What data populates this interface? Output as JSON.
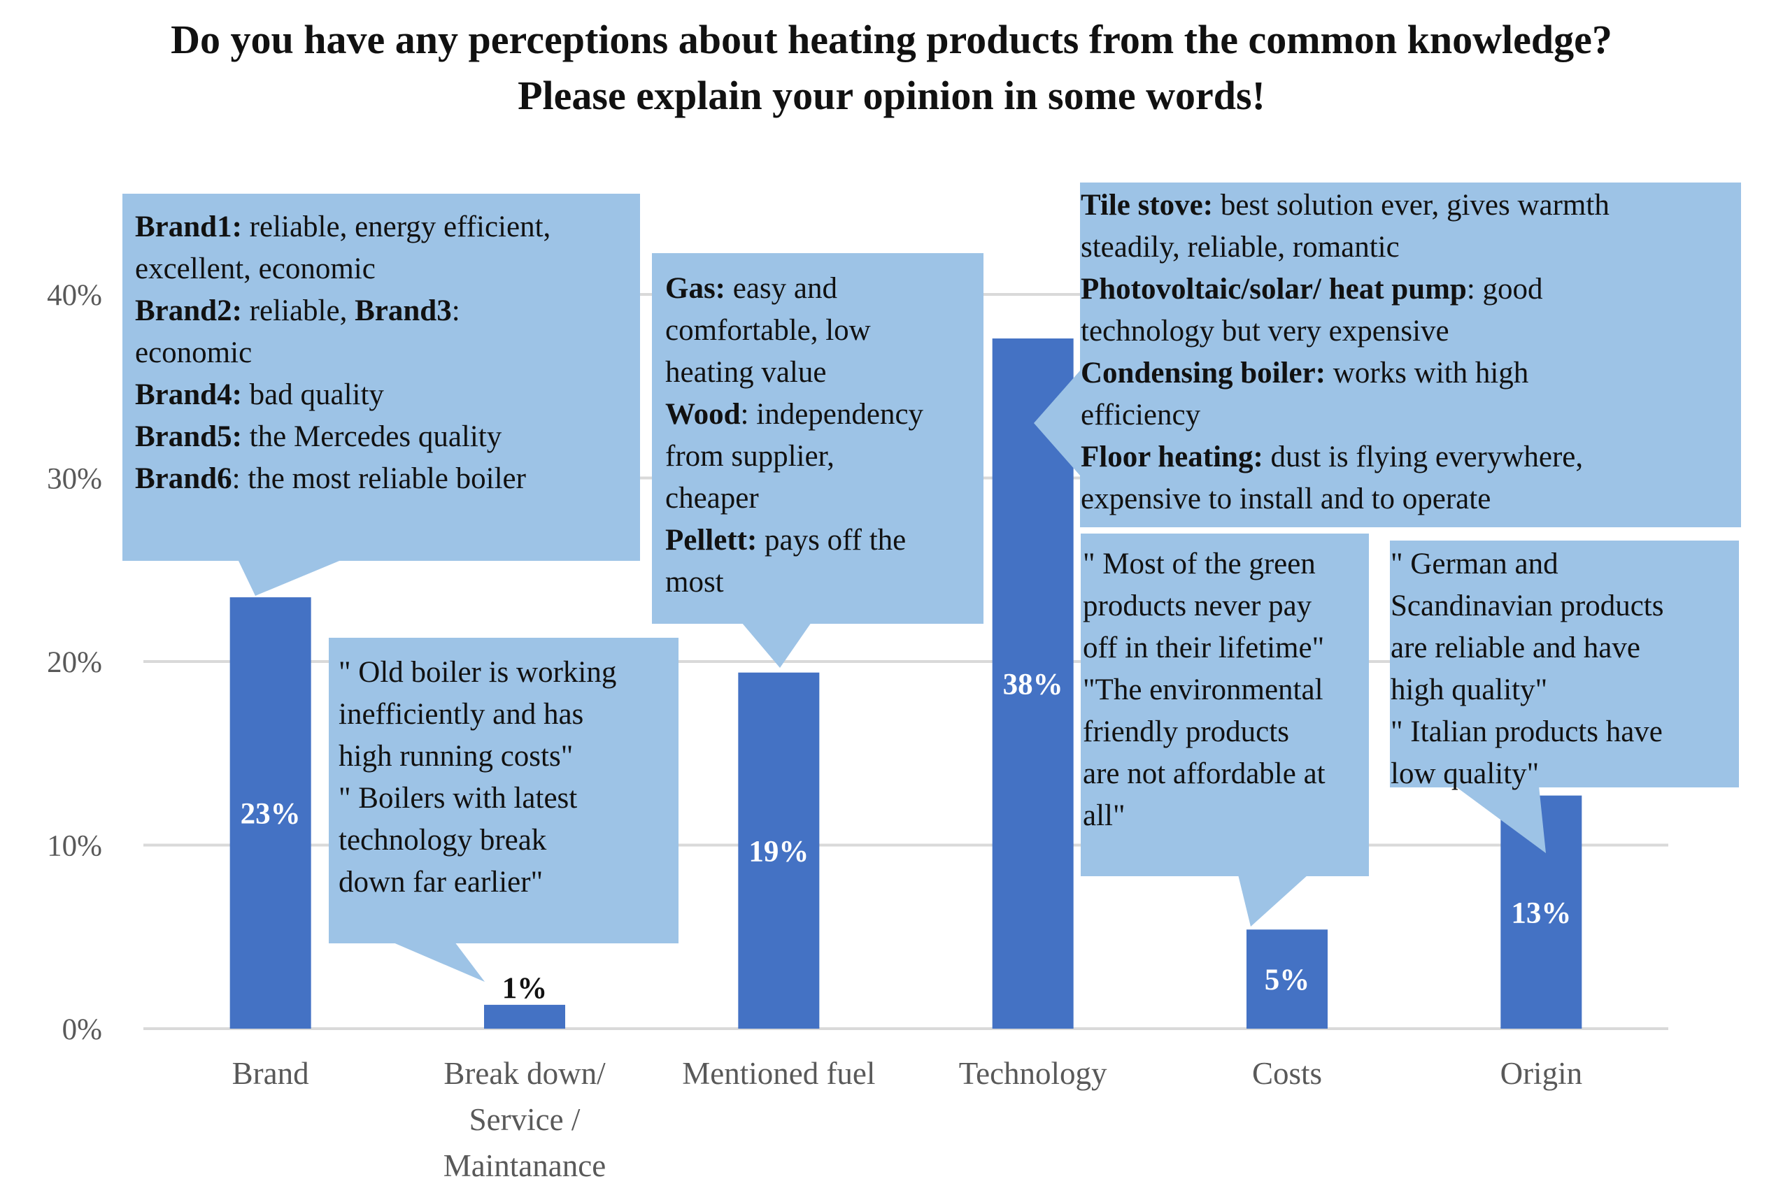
{
  "title_line1": "Do you have any perceptions about heating products from the common knowledge?",
  "title_line2": "Please explain your opinion in some words!",
  "colors": {
    "bar": "#4472C4",
    "callout": "#9DC3E6",
    "grid": "#D9D9D9",
    "axis_text": "#595959"
  },
  "chart_data": {
    "type": "bar",
    "title": "Do you have any perceptions about heating products from the common knowledge? Please explain your opinion in some words!",
    "categories": [
      "Brand",
      "Break down/ Service / Maintanance",
      "Mentioned fuel",
      "Technology",
      "Costs",
      "Origin"
    ],
    "category_lines": [
      [
        "Brand"
      ],
      [
        "Break down/",
        "Service /",
        "Maintanance"
      ],
      [
        "Mentioned fuel"
      ],
      [
        "Technology"
      ],
      [
        "Costs"
      ],
      [
        "Origin"
      ]
    ],
    "values": [
      23.5,
      1.3,
      19.4,
      37.6,
      5.4,
      12.7
    ],
    "data_labels": [
      "23%",
      "1%",
      "19%",
      "38%",
      "5%",
      "13%"
    ],
    "ylim": [
      0,
      40
    ],
    "yticks": [
      0,
      10,
      20,
      30,
      40
    ],
    "ytick_labels": [
      "0%",
      "10%",
      "20%",
      "30%",
      "40%"
    ],
    "grid": true,
    "xlabel": "",
    "ylabel": ""
  },
  "callouts": {
    "brand": [
      [
        {
          "b": "Brand1:"
        },
        {
          "t": " reliable, energy efficient,"
        }
      ],
      [
        {
          "t": "excellent, economic"
        }
      ],
      [
        {
          "b": "Brand2:"
        },
        {
          "t": " reliable, "
        },
        {
          "b": "Brand3"
        },
        {
          "t": ":"
        }
      ],
      [
        {
          "t": "economic"
        }
      ],
      [
        {
          "b": "Brand4:"
        },
        {
          "t": " bad quality"
        }
      ],
      [
        {
          "b": "Brand5:"
        },
        {
          "t": " the Mercedes quality"
        }
      ],
      [
        {
          "b": "Brand6"
        },
        {
          "t": ": the most reliable boiler"
        }
      ]
    ],
    "breakdown": [
      [
        {
          "t": "\" Old boiler is working"
        }
      ],
      [
        {
          "t": "inefficiently and has"
        }
      ],
      [
        {
          "t": "high running costs\""
        }
      ],
      [
        {
          "t": "\" Boilers with latest"
        }
      ],
      [
        {
          "t": "technology break"
        }
      ],
      [
        {
          "t": "down far earlier\""
        }
      ]
    ],
    "fuel": [
      [
        {
          "b": "Gas:"
        },
        {
          "t": " easy and"
        }
      ],
      [
        {
          "t": "comfortable, low"
        }
      ],
      [
        {
          "t": "heating value"
        }
      ],
      [
        {
          "b": "Wood"
        },
        {
          "t": ": independency"
        }
      ],
      [
        {
          "t": "from supplier,"
        }
      ],
      [
        {
          "t": "cheaper"
        }
      ],
      [
        {
          "b": "Pellett:"
        },
        {
          "t": " pays off the"
        }
      ],
      [
        {
          "t": "most"
        }
      ]
    ],
    "technology": [
      [
        {
          "b": "Tile stove:"
        },
        {
          "t": " best solution ever, gives warmth"
        }
      ],
      [
        {
          "t": "steadily, reliable, romantic"
        }
      ],
      [
        {
          "b": "Photovoltaic/solar/ heat pump"
        },
        {
          "t": ": good"
        }
      ],
      [
        {
          "t": "technology but very expensive"
        }
      ],
      [
        {
          "b": "Condensing boiler:"
        },
        {
          "t": " works with high"
        }
      ],
      [
        {
          "t": "efficiency"
        }
      ],
      [
        {
          "b": "Floor heating:"
        },
        {
          "t": " dust is flying everywhere,"
        }
      ],
      [
        {
          "t": "expensive to install and to operate"
        }
      ]
    ],
    "costs": [
      [
        {
          "t": "\" Most of the green"
        }
      ],
      [
        {
          "t": "products never pay"
        }
      ],
      [
        {
          "t": "off in their lifetime\""
        }
      ],
      [
        {
          "t": "\"The environmental"
        }
      ],
      [
        {
          "t": "friendly products"
        }
      ],
      [
        {
          "t": "are not affordable at"
        }
      ],
      [
        {
          "t": "all\""
        }
      ]
    ],
    "origin": [
      [
        {
          "t": "\" German and"
        }
      ],
      [
        {
          "t": "Scandinavian products"
        }
      ],
      [
        {
          "t": "are reliable and have"
        }
      ],
      [
        {
          "t": "high quality\""
        }
      ],
      [
        {
          "t": "\" Italian products have"
        }
      ],
      [
        {
          "t": "low quality\""
        }
      ]
    ]
  }
}
